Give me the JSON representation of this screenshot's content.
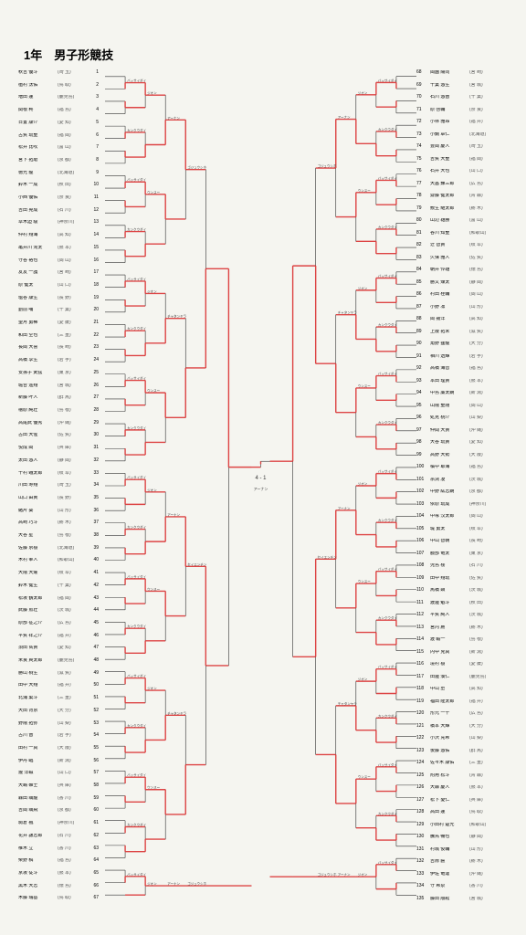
{
  "title": "1年　男子形競技",
  "colors": {
    "paper_bg": "#f5f5f0",
    "page_bg": "#b8b8b8",
    "line": "#333333",
    "winner_line": "#d44444",
    "text": "#000000",
    "pref_text": "#555555"
  },
  "typography": {
    "title_fontsize": 13,
    "entrant_fontsize": 5,
    "technique_fontsize": 3.5
  },
  "bracket": {
    "type": "single-elimination",
    "rounds": 7,
    "left_entrants_count": 67,
    "right_entrants_count": 68,
    "center_label_top": "4 - 1",
    "center_label_sub": "アーナン"
  },
  "left_entrants": [
    {
      "num": 1,
      "name": "秋吉 優斗",
      "pref": "(埼 玉)"
    },
    {
      "num": 2,
      "name": "植村 汰佑",
      "pref": "(鳥 取)"
    },
    {
      "num": 3,
      "name": "増田 蓮",
      "pref": "(鹿児島)"
    },
    {
      "num": 4,
      "name": "関根 柊",
      "pref": "(福 島)"
    },
    {
      "num": 5,
      "name": "日置 康介",
      "pref": "(愛 知)"
    },
    {
      "num": 6,
      "name": "古賀 琉聖",
      "pref": "(福 岡)"
    },
    {
      "num": 7,
      "name": "松井 比吹",
      "pref": "(富 山)"
    },
    {
      "num": 8,
      "name": "宮下 拓磨",
      "pref": "(京 都)"
    },
    {
      "num": 9,
      "name": "徳光 龍",
      "pref": "(北海道)"
    },
    {
      "num": 10,
      "name": "鈴木 一成",
      "pref": "(秋 田)"
    },
    {
      "num": 11,
      "name": "小西 優佑",
      "pref": "(奈 良)"
    },
    {
      "num": 12,
      "name": "吉田 晃成",
      "pref": "(石 川)"
    },
    {
      "num": 13,
      "name": "草木迫 駿",
      "pref": "(神奈川)"
    },
    {
      "num": 14,
      "name": "仲村 翔海",
      "pref": "(高 知)"
    },
    {
      "num": 15,
      "name": "亀井川 洵太",
      "pref": "(熊 本)"
    },
    {
      "num": 16,
      "name": "守谷 裕也",
      "pref": "(岡 山)"
    },
    {
      "num": 17,
      "name": "友友 一護",
      "pref": "(宮 崎)"
    },
    {
      "num": 18,
      "name": "原 健太",
      "pref": "(山 口)"
    },
    {
      "num": 19,
      "name": "塩谷 康生",
      "pref": "(長 野)"
    },
    {
      "num": 20,
      "name": "劉前 哺",
      "pref": "(千 葉)"
    },
    {
      "num": 21,
      "name": "望月 勇稀",
      "pref": "(愛 媛)"
    },
    {
      "num": 22,
      "name": "和田 空也",
      "pref": "(三 重)"
    },
    {
      "num": 23,
      "name": "長岡 大喜",
      "pref": "(長 崎)"
    },
    {
      "num": 24,
      "name": "高橋 享生",
      "pref": "(岩 手)"
    },
    {
      "num": 25,
      "name": "安孫子 武弦",
      "pref": "(東 京)"
    },
    {
      "num": 26,
      "name": "堀合 遥翔",
      "pref": "(宮 城)"
    },
    {
      "num": 27,
      "name": "新藤 叶人",
      "pref": "(群 馬)"
    },
    {
      "num": 28,
      "name": "檜原 純壮",
      "pref": "(島 根)"
    },
    {
      "num": 29,
      "name": "高尾武 優秀",
      "pref": "(沖 縄)"
    },
    {
      "num": 30,
      "name": "古田 大惺",
      "pref": "(佐 賀)"
    },
    {
      "num": 31,
      "name": "悦成 岡",
      "pref": "(兵 庫)"
    },
    {
      "num": 32,
      "name": "太田 悠人",
      "pref": "(静 岡)"
    },
    {
      "num": 33,
      "name": "十村 蛾太郎",
      "pref": "(岐 阜)"
    },
    {
      "num": 34,
      "name": "川田 寿翔",
      "pref": "(埼 玉)"
    },
    {
      "num": 35,
      "name": "山口 由眞",
      "pref": "(長 野)"
    },
    {
      "num": 36,
      "name": "緒片 葵",
      "pref": "(山 形)"
    },
    {
      "num": 37,
      "name": "高崎 巧斗",
      "pref": "(栃 木)"
    },
    {
      "num": 38,
      "name": "大谷 星",
      "pref": "(島 根)"
    },
    {
      "num": 39,
      "name": "佐藤 京樹",
      "pref": "(北海道)"
    },
    {
      "num": 40,
      "name": "木村 奉人",
      "pref": "(和歌山)"
    },
    {
      "num": 41,
      "name": "大隈 大燿",
      "pref": "(岐 阜)"
    },
    {
      "num": 42,
      "name": "鈴木 健生",
      "pref": "(千 葉)"
    },
    {
      "num": 43,
      "name": "松坂 鶴太郎",
      "pref": "(福 岡)"
    },
    {
      "num": 44,
      "name": "武藤 煎壮",
      "pref": "(茨 城)"
    },
    {
      "num": 45,
      "name": "原部 征之介",
      "pref": "(広 島)"
    },
    {
      "num": 46,
      "name": "平賀 祥之介",
      "pref": "(福 井)"
    },
    {
      "num": 47,
      "name": "須田 雋貴",
      "pref": "(愛 知)"
    },
    {
      "num": 48,
      "name": "米良 爽太郎",
      "pref": "(鹿児島)"
    },
    {
      "num": 49,
      "name": "勝山 桐生",
      "pref": "(滋 賀)"
    },
    {
      "num": 50,
      "name": "田中 大翔",
      "pref": "(福 井)"
    },
    {
      "num": 51,
      "name": "北浦 棄斗",
      "pref": "(三 重)"
    },
    {
      "num": 52,
      "name": "大田 背京",
      "pref": "(大 分)"
    },
    {
      "num": 53,
      "name": "野隈 拓弥",
      "pref": "(山 梨)"
    },
    {
      "num": 54,
      "name": "古川 晋",
      "pref": "(岩 手)"
    },
    {
      "num": 55,
      "name": "田村 一真",
      "pref": "(大 阪)"
    },
    {
      "num": 56,
      "name": "伊丹 臨",
      "pref": "(新 潟)"
    },
    {
      "num": 57,
      "name": "瀧 洋磁",
      "pref": "(山 口)"
    },
    {
      "num": 58,
      "name": "大嶋 碓士",
      "pref": "(兵 庫)"
    },
    {
      "num": 59,
      "name": "森田 颯龍",
      "pref": "(香 川)"
    },
    {
      "num": 60,
      "name": "吉岡 颯飛",
      "pref": "(京 都)"
    },
    {
      "num": 61,
      "name": "駒倉 楓",
      "pref": "(神奈川)"
    },
    {
      "num": 62,
      "name": "花井 譲志郎",
      "pref": "(石 川)"
    },
    {
      "num": 63,
      "name": "椎木 立",
      "pref": "(香 川)"
    },
    {
      "num": 64,
      "name": "柴野 稿",
      "pref": "(福 島)"
    },
    {
      "num": 65,
      "name": "京坂 従斗",
      "pref": "(熊 本)"
    },
    {
      "num": 66,
      "name": "黒木 大志",
      "pref": "(徳 島)"
    },
    {
      "num": 67,
      "name": "木藤 瑞基",
      "pref": "(鳥 取)"
    }
  ],
  "right_entrants": [
    {
      "num": 68,
      "name": "岡園 陽向",
      "pref": "(宮 崎)"
    },
    {
      "num": 69,
      "name": "千葉 悠生",
      "pref": "(宮 城)"
    },
    {
      "num": 70,
      "name": "石川 悠晋",
      "pref": "(千 葉)"
    },
    {
      "num": 71,
      "name": "原 啓輔",
      "pref": "(奈 良)"
    },
    {
      "num": 72,
      "name": "小林 雅昂",
      "pref": "(福 井)"
    },
    {
      "num": 73,
      "name": "小鋼 章仁",
      "pref": "(北海道)"
    },
    {
      "num": 74,
      "name": "豊岡 慶人",
      "pref": "(埼 玉)"
    },
    {
      "num": 75,
      "name": "吉賀 大聖",
      "pref": "(福 岡)"
    },
    {
      "num": 76,
      "name": "石井 大也",
      "pref": "(山 口)"
    },
    {
      "num": 77,
      "name": "大畠 錬三郎",
      "pref": "(広 島)"
    },
    {
      "num": 78,
      "name": "齋藤 健太郎",
      "pref": "(青 森)"
    },
    {
      "num": 79,
      "name": "敷生 継太郎",
      "pref": "(栃 木)"
    },
    {
      "num": 80,
      "name": "山辺 雄勝",
      "pref": "(富 山)"
    },
    {
      "num": 81,
      "name": "谷川 知聖",
      "pref": "(和歌山)"
    },
    {
      "num": 82,
      "name": "辻 智貴",
      "pref": "(岐 阜)"
    },
    {
      "num": 83,
      "name": "久保 雅人",
      "pref": "(佐 賀)"
    },
    {
      "num": 84,
      "name": "朝井 怜雄",
      "pref": "(徳 島)"
    },
    {
      "num": 85,
      "name": "勝又 煉太",
      "pref": "(静 岡)"
    },
    {
      "num": 86,
      "name": "村田 桂輔",
      "pref": "(岡 山)"
    },
    {
      "num": 87,
      "name": "小野 凛",
      "pref": "(山 形)"
    },
    {
      "num": 88,
      "name": "岡 揚洋",
      "pref": "(高 知)"
    },
    {
      "num": 89,
      "name": "上阪 拓未",
      "pref": "(滋 賀)"
    },
    {
      "num": 90,
      "name": "角野 猛龍",
      "pref": "(大 分)"
    },
    {
      "num": 91,
      "name": "相川 透輝",
      "pref": "(岩 手)"
    },
    {
      "num": 92,
      "name": "高橋 海音",
      "pref": "(福 島)"
    },
    {
      "num": 93,
      "name": "本田 理貴",
      "pref": "(熊 本)"
    },
    {
      "num": 94,
      "name": "中島 廉太朗",
      "pref": "(新 潟)"
    },
    {
      "num": 95,
      "name": "山隈 聖剛",
      "pref": "(岡 山)"
    },
    {
      "num": 96,
      "name": "処見 桃介",
      "pref": "(山 梨)"
    },
    {
      "num": 97,
      "name": "仲間 大貴",
      "pref": "(沖 縄)"
    },
    {
      "num": 98,
      "name": "大谷 琉貴",
      "pref": "(愛 知)"
    },
    {
      "num": 99,
      "name": "高野 大勢",
      "pref": "(大 阪)"
    },
    {
      "num": 100,
      "name": "橘中 耶海",
      "pref": "(福 島)"
    },
    {
      "num": 101,
      "name": "宗渕 凌",
      "pref": "(茨 城)"
    },
    {
      "num": 102,
      "name": "中野 紘志朗",
      "pref": "(京 都)"
    },
    {
      "num": 103,
      "name": "依原 琉成",
      "pref": "(神奈川)"
    },
    {
      "num": 104,
      "name": "中塚 汉太郎",
      "pref": "(岡 山)"
    },
    {
      "num": 105,
      "name": "堤 勇太",
      "pref": "(岐 阜)"
    },
    {
      "num": 106,
      "name": "中山 智朝",
      "pref": "(長 崎)"
    },
    {
      "num": 107,
      "name": "服部 竜太",
      "pref": "(東 京)"
    },
    {
      "num": 108,
      "name": "児島 楼",
      "pref": "(石 川)"
    },
    {
      "num": 109,
      "name": "田中 翔琉",
      "pref": "(佐 賀)"
    },
    {
      "num": 110,
      "name": "馬橋 顕",
      "pref": "(茨 城)"
    },
    {
      "num": 111,
      "name": "渡邊 魁斗",
      "pref": "(秋 田)"
    },
    {
      "num": 112,
      "name": "平賀 純人",
      "pref": "(茨 城)"
    },
    {
      "num": 113,
      "name": "宮内 鷹",
      "pref": "(栃 木)"
    },
    {
      "num": 114,
      "name": "渡 輸一",
      "pref": "(島 根)"
    },
    {
      "num": 115,
      "name": "内中 克真",
      "pref": "(新 潟)"
    },
    {
      "num": 116,
      "name": "境村 樹",
      "pref": "(愛 媛)"
    },
    {
      "num": 117,
      "name": "田邊 湊仁",
      "pref": "(鹿児島)"
    },
    {
      "num": 118,
      "name": "中山 丞",
      "pref": "(高 知)"
    },
    {
      "num": 119,
      "name": "福田 隆太郎",
      "pref": "(福 井)"
    },
    {
      "num": 120,
      "name": "形元 一千",
      "pref": "(広 島)"
    },
    {
      "num": 121,
      "name": "橋本 大輝",
      "pref": "(大 分)"
    },
    {
      "num": 122,
      "name": "小沢 充希",
      "pref": "(山 梨)"
    },
    {
      "num": 123,
      "name": "後藤 悠佑",
      "pref": "(群 馬)"
    },
    {
      "num": 124,
      "name": "佐々木 康佑",
      "pref": "(三 重)"
    },
    {
      "num": 125,
      "name": "附用 松斗",
      "pref": "(青 森)"
    },
    {
      "num": 126,
      "name": "大森 慶人",
      "pref": "(熊 本)"
    },
    {
      "num": 127,
      "name": "松下 憂仁",
      "pref": "(兵 庫)"
    },
    {
      "num": 128,
      "name": "高田 蓮",
      "pref": "(鳥 取)"
    },
    {
      "num": 129,
      "name": "小田村 楚光",
      "pref": "(和歌山)"
    },
    {
      "num": 130,
      "name": "騰鳥 暢也",
      "pref": "(静 岡)"
    },
    {
      "num": 131,
      "name": "村城 俊輔",
      "pref": "(山 形)"
    },
    {
      "num": 132,
      "name": "吉際 匾",
      "pref": "(栃 木)"
    },
    {
      "num": 133,
      "name": "伊佐 竜違",
      "pref": "(沖 縄)"
    },
    {
      "num": 134,
      "name": "守 希泉",
      "pref": "(香 川)"
    },
    {
      "num": 135,
      "name": "藤田 順耘",
      "pref": "(宮 城)"
    }
  ]
}
